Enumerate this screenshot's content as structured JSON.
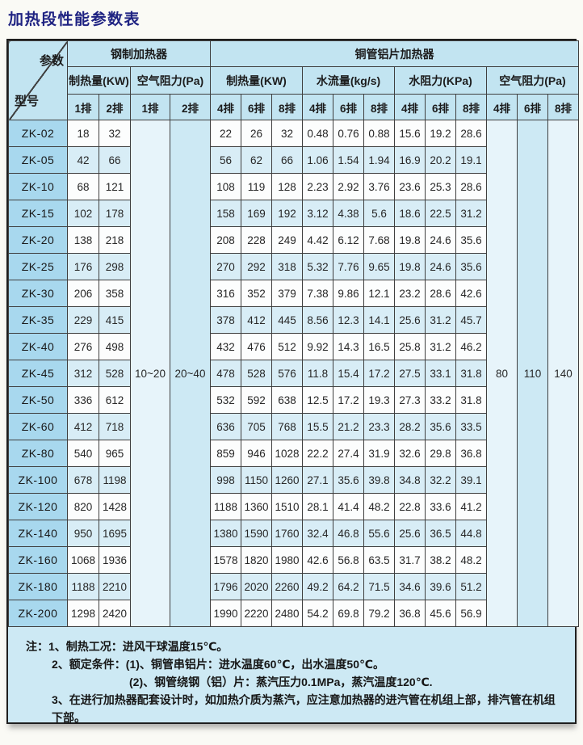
{
  "title": "加热段性能参数表",
  "colors": {
    "page-bg": "#fafaf5",
    "title": "#1f2382",
    "table-bg": "#cde9f4",
    "header-bg": "#c2e4f1",
    "model-bg": "#a8d8ee",
    "row-white": "#fcfdfd",
    "row-stripe": "#d8edf6",
    "merged-pale": "#e7f4fa",
    "merged-blue": "#cde9f4",
    "grid": "#3f3f3f",
    "outer": "#1f1f1f",
    "text": "#272727"
  },
  "table": {
    "corner": {
      "top_right": "参数",
      "bottom_left": "型号"
    },
    "groups": [
      {
        "label": "钢制加热器",
        "span": 4
      },
      {
        "label": "铜管铝片加热器",
        "span": 12
      }
    ],
    "subgroups": [
      {
        "label": "制热量(KW)",
        "span": 2
      },
      {
        "label": "空气阻力(Pa)",
        "span": 2
      },
      {
        "label": "制热量(KW)",
        "span": 3
      },
      {
        "label": "水流量(kg/s)",
        "span": 3
      },
      {
        "label": "水阻力(KPa)",
        "span": 3
      },
      {
        "label": "空气阻力(Pa)",
        "span": 3
      }
    ],
    "row_headers": [
      "1排",
      "2排",
      "1排",
      "2排",
      "4排",
      "6排",
      "8排",
      "4排",
      "6排",
      "8排",
      "4排",
      "6排",
      "8排",
      "4排",
      "6排",
      "8排"
    ],
    "merged": {
      "steel_air": [
        "10~20",
        "20~40"
      ],
      "copper_air": [
        "80",
        "110",
        "140"
      ]
    },
    "rows": [
      {
        "model": "ZK-02",
        "steel_kw": [
          "18",
          "32"
        ],
        "copper_kw": [
          "22",
          "26",
          "32"
        ],
        "flow": [
          "0.48",
          "0.76",
          "0.88"
        ],
        "water_res": [
          "15.6",
          "19.2",
          "28.6"
        ]
      },
      {
        "model": "ZK-05",
        "steel_kw": [
          "42",
          "66"
        ],
        "copper_kw": [
          "56",
          "62",
          "66"
        ],
        "flow": [
          "1.06",
          "1.54",
          "1.94"
        ],
        "water_res": [
          "16.9",
          "20.2",
          "19.1"
        ]
      },
      {
        "model": "ZK-10",
        "steel_kw": [
          "68",
          "121"
        ],
        "copper_kw": [
          "108",
          "119",
          "128"
        ],
        "flow": [
          "2.23",
          "2.92",
          "3.76"
        ],
        "water_res": [
          "23.6",
          "25.3",
          "28.6"
        ]
      },
      {
        "model": "ZK-15",
        "steel_kw": [
          "102",
          "178"
        ],
        "copper_kw": [
          "158",
          "169",
          "192"
        ],
        "flow": [
          "3.12",
          "4.38",
          "5.6"
        ],
        "water_res": [
          "18.6",
          "22.5",
          "31.2"
        ]
      },
      {
        "model": "ZK-20",
        "steel_kw": [
          "138",
          "218"
        ],
        "copper_kw": [
          "208",
          "228",
          "249"
        ],
        "flow": [
          "4.42",
          "6.12",
          "7.68"
        ],
        "water_res": [
          "19.8",
          "24.6",
          "35.6"
        ]
      },
      {
        "model": "ZK-25",
        "steel_kw": [
          "176",
          "298"
        ],
        "copper_kw": [
          "270",
          "292",
          "318"
        ],
        "flow": [
          "5.32",
          "7.76",
          "9.65"
        ],
        "water_res": [
          "19.8",
          "24.6",
          "35.6"
        ]
      },
      {
        "model": "ZK-30",
        "steel_kw": [
          "206",
          "358"
        ],
        "copper_kw": [
          "316",
          "352",
          "379"
        ],
        "flow": [
          "7.38",
          "9.86",
          "12.1"
        ],
        "water_res": [
          "23.2",
          "28.6",
          "42.6"
        ]
      },
      {
        "model": "ZK-35",
        "steel_kw": [
          "229",
          "415"
        ],
        "copper_kw": [
          "378",
          "412",
          "445"
        ],
        "flow": [
          "8.56",
          "12.3",
          "14.1"
        ],
        "water_res": [
          "25.6",
          "31.2",
          "45.7"
        ]
      },
      {
        "model": "ZK-40",
        "steel_kw": [
          "276",
          "498"
        ],
        "copper_kw": [
          "432",
          "476",
          "512"
        ],
        "flow": [
          "9.92",
          "14.3",
          "16.5"
        ],
        "water_res": [
          "25.8",
          "31.2",
          "46.2"
        ]
      },
      {
        "model": "ZK-45",
        "steel_kw": [
          "312",
          "528"
        ],
        "copper_kw": [
          "478",
          "528",
          "576"
        ],
        "flow": [
          "11.8",
          "15.4",
          "17.2"
        ],
        "water_res": [
          "27.5",
          "33.1",
          "31.8"
        ]
      },
      {
        "model": "ZK-50",
        "steel_kw": [
          "336",
          "612"
        ],
        "copper_kw": [
          "532",
          "592",
          "638"
        ],
        "flow": [
          "12.5",
          "17.2",
          "19.3"
        ],
        "water_res": [
          "27.3",
          "33.2",
          "31.8"
        ]
      },
      {
        "model": "ZK-60",
        "steel_kw": [
          "412",
          "718"
        ],
        "copper_kw": [
          "636",
          "705",
          "768"
        ],
        "flow": [
          "15.5",
          "21.2",
          "23.3"
        ],
        "water_res": [
          "28.2",
          "35.6",
          "33.5"
        ]
      },
      {
        "model": "ZK-80",
        "steel_kw": [
          "540",
          "965"
        ],
        "copper_kw": [
          "859",
          "946",
          "1028"
        ],
        "flow": [
          "22.2",
          "27.4",
          "31.9"
        ],
        "water_res": [
          "32.6",
          "29.8",
          "36.8"
        ]
      },
      {
        "model": "ZK-100",
        "steel_kw": [
          "678",
          "1198"
        ],
        "copper_kw": [
          "998",
          "1150",
          "1260"
        ],
        "flow": [
          "27.1",
          "35.6",
          "39.8"
        ],
        "water_res": [
          "34.8",
          "32.2",
          "39.1"
        ]
      },
      {
        "model": "ZK-120",
        "steel_kw": [
          "820",
          "1428"
        ],
        "copper_kw": [
          "1188",
          "1360",
          "1510"
        ],
        "flow": [
          "28.1",
          "41.4",
          "48.2"
        ],
        "water_res": [
          "22.8",
          "33.6",
          "41.2"
        ]
      },
      {
        "model": "ZK-140",
        "steel_kw": [
          "950",
          "1695"
        ],
        "copper_kw": [
          "1380",
          "1590",
          "1760"
        ],
        "flow": [
          "32.4",
          "46.8",
          "55.6"
        ],
        "water_res": [
          "25.6",
          "36.5",
          "44.8"
        ]
      },
      {
        "model": "ZK-160",
        "steel_kw": [
          "1068",
          "1936"
        ],
        "copper_kw": [
          "1578",
          "1820",
          "1980"
        ],
        "flow": [
          "42.6",
          "56.8",
          "63.5"
        ],
        "water_res": [
          "31.7",
          "38.2",
          "48.2"
        ]
      },
      {
        "model": "ZK-180",
        "steel_kw": [
          "1188",
          "2210"
        ],
        "copper_kw": [
          "1796",
          "2020",
          "2260"
        ],
        "flow": [
          "49.2",
          "64.2",
          "71.5"
        ],
        "water_res": [
          "34.6",
          "39.6",
          "51.2"
        ]
      },
      {
        "model": "ZK-200",
        "steel_kw": [
          "1298",
          "2420"
        ],
        "copper_kw": [
          "1990",
          "2220",
          "2480"
        ],
        "flow": [
          "54.2",
          "69.8",
          "79.2"
        ],
        "water_res": [
          "36.8",
          "45.6",
          "56.9"
        ]
      }
    ]
  },
  "notes": {
    "lines": [
      {
        "indent": 0,
        "text": "注：1、制热工况：进风干球温度15℃。"
      },
      {
        "indent": 1,
        "text": "2、额定条件：(1)、铜管串铝片：进水温度60℃，出水温度50℃。"
      },
      {
        "indent": 2,
        "text": "(2)、钢管绕钢（铝）片：蒸汽压力0.1MPa，蒸汽温度120℃."
      },
      {
        "indent": 1,
        "text": "3、在进行加热器配套设计时，如加热介质为蒸汽，应注意加热器的进汽管在机组上部，排汽管在机组"
      },
      {
        "indent": 1,
        "text": "下部。"
      }
    ]
  }
}
